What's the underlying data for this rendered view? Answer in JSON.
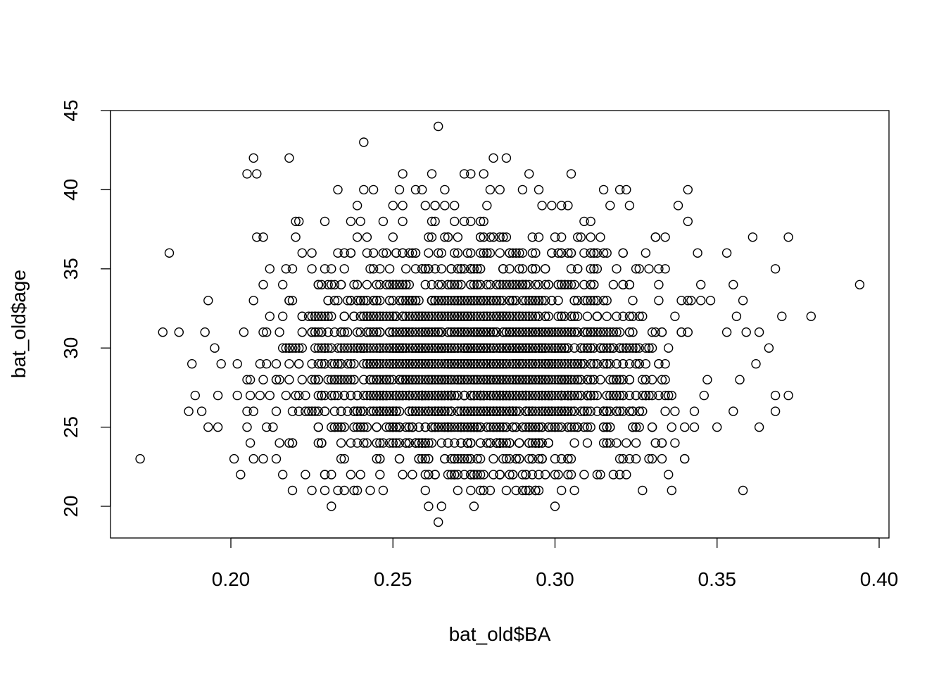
{
  "chart_data": {
    "type": "scatter",
    "title": "",
    "xlabel": "bat_old$BA",
    "ylabel": "bat_old$age",
    "xlim": [
      0.165,
      0.405
    ],
    "ylim": [
      18,
      45
    ],
    "x_ticks": [
      0.2,
      0.25,
      0.3,
      0.35,
      0.4
    ],
    "x_tick_labels": [
      "0.20",
      "0.25",
      "0.30",
      "0.35",
      "0.40"
    ],
    "y_ticks": [
      20,
      25,
      30,
      35,
      40,
      45
    ],
    "y_tick_labels": [
      "20",
      "25",
      "30",
      "35",
      "40",
      "45"
    ],
    "grid": false,
    "legend": "none",
    "marker": "open-circle",
    "color": "#000000",
    "points": [
      {
        "x": 0.172,
        "y": 23
      },
      {
        "x": 0.181,
        "y": 36
      },
      {
        "x": 0.179,
        "y": 31
      },
      {
        "x": 0.184,
        "y": 31
      },
      {
        "x": 0.187,
        "y": 26
      },
      {
        "x": 0.188,
        "y": 29
      },
      {
        "x": 0.189,
        "y": 27
      },
      {
        "x": 0.191,
        "y": 26
      },
      {
        "x": 0.192,
        "y": 31
      },
      {
        "x": 0.193,
        "y": 25
      },
      {
        "x": 0.193,
        "y": 33
      },
      {
        "x": 0.195,
        "y": 30
      },
      {
        "x": 0.196,
        "y": 25
      },
      {
        "x": 0.196,
        "y": 27
      },
      {
        "x": 0.197,
        "y": 29
      },
      {
        "x": 0.201,
        "y": 23
      },
      {
        "x": 0.202,
        "y": 29
      },
      {
        "x": 0.202,
        "y": 27
      },
      {
        "x": 0.203,
        "y": 22
      },
      {
        "x": 0.204,
        "y": 31
      },
      {
        "x": 0.205,
        "y": 41
      },
      {
        "x": 0.205,
        "y": 26
      },
      {
        "x": 0.205,
        "y": 25
      },
      {
        "x": 0.207,
        "y": 42
      },
      {
        "x": 0.208,
        "y": 41
      },
      {
        "x": 0.207,
        "y": 33
      },
      {
        "x": 0.207,
        "y": 23
      },
      {
        "x": 0.208,
        "y": 37
      },
      {
        "x": 0.21,
        "y": 37
      },
      {
        "x": 0.212,
        "y": 35
      },
      {
        "x": 0.218,
        "y": 42
      },
      {
        "x": 0.221,
        "y": 38
      },
      {
        "x": 0.222,
        "y": 36
      },
      {
        "x": 0.225,
        "y": 21
      },
      {
        "x": 0.229,
        "y": 21
      },
      {
        "x": 0.231,
        "y": 20
      },
      {
        "x": 0.233,
        "y": 40
      },
      {
        "x": 0.233,
        "y": 21
      },
      {
        "x": 0.237,
        "y": 38
      },
      {
        "x": 0.239,
        "y": 39
      },
      {
        "x": 0.241,
        "y": 43
      },
      {
        "x": 0.241,
        "y": 40
      },
      {
        "x": 0.244,
        "y": 40
      },
      {
        "x": 0.247,
        "y": 21
      },
      {
        "x": 0.25,
        "y": 39
      },
      {
        "x": 0.252,
        "y": 40
      },
      {
        "x": 0.253,
        "y": 41
      },
      {
        "x": 0.257,
        "y": 40
      },
      {
        "x": 0.259,
        "y": 40
      },
      {
        "x": 0.261,
        "y": 20
      },
      {
        "x": 0.262,
        "y": 41
      },
      {
        "x": 0.264,
        "y": 44
      },
      {
        "x": 0.264,
        "y": 19
      },
      {
        "x": 0.265,
        "y": 20
      },
      {
        "x": 0.266,
        "y": 40
      },
      {
        "x": 0.269,
        "y": 39
      },
      {
        "x": 0.272,
        "y": 41
      },
      {
        "x": 0.274,
        "y": 41
      },
      {
        "x": 0.275,
        "y": 20
      },
      {
        "x": 0.278,
        "y": 41
      },
      {
        "x": 0.281,
        "y": 42
      },
      {
        "x": 0.28,
        "y": 40
      },
      {
        "x": 0.283,
        "y": 40
      },
      {
        "x": 0.285,
        "y": 42
      },
      {
        "x": 0.29,
        "y": 40
      },
      {
        "x": 0.292,
        "y": 41
      },
      {
        "x": 0.295,
        "y": 40
      },
      {
        "x": 0.3,
        "y": 20
      },
      {
        "x": 0.302,
        "y": 39
      },
      {
        "x": 0.305,
        "y": 41
      },
      {
        "x": 0.306,
        "y": 21
      },
      {
        "x": 0.309,
        "y": 22
      },
      {
        "x": 0.311,
        "y": 38
      },
      {
        "x": 0.314,
        "y": 22
      },
      {
        "x": 0.315,
        "y": 40
      },
      {
        "x": 0.317,
        "y": 39
      },
      {
        "x": 0.32,
        "y": 40
      },
      {
        "x": 0.322,
        "y": 40
      },
      {
        "x": 0.323,
        "y": 39
      },
      {
        "x": 0.327,
        "y": 21
      },
      {
        "x": 0.33,
        "y": 23
      },
      {
        "x": 0.331,
        "y": 37
      },
      {
        "x": 0.338,
        "y": 39
      },
      {
        "x": 0.341,
        "y": 40
      },
      {
        "x": 0.341,
        "y": 38
      },
      {
        "x": 0.344,
        "y": 36
      },
      {
        "x": 0.348,
        "y": 33
      },
      {
        "x": 0.35,
        "y": 25
      },
      {
        "x": 0.353,
        "y": 36
      },
      {
        "x": 0.353,
        "y": 31
      },
      {
        "x": 0.355,
        "y": 34
      },
      {
        "x": 0.356,
        "y": 32
      },
      {
        "x": 0.358,
        "y": 33
      },
      {
        "x": 0.358,
        "y": 21
      },
      {
        "x": 0.359,
        "y": 31
      },
      {
        "x": 0.361,
        "y": 37
      },
      {
        "x": 0.362,
        "y": 29
      },
      {
        "x": 0.363,
        "y": 31
      },
      {
        "x": 0.363,
        "y": 25
      },
      {
        "x": 0.366,
        "y": 30
      },
      {
        "x": 0.368,
        "y": 35
      },
      {
        "x": 0.368,
        "y": 27
      },
      {
        "x": 0.368,
        "y": 26
      },
      {
        "x": 0.37,
        "y": 32
      },
      {
        "x": 0.372,
        "y": 37
      },
      {
        "x": 0.372,
        "y": 27
      },
      {
        "x": 0.379,
        "y": 32
      },
      {
        "x": 0.394,
        "y": 34
      },
      {
        "x": 0.357,
        "y": 28
      },
      {
        "x": 0.355,
        "y": 26
      },
      {
        "x": 0.343,
        "y": 25
      },
      {
        "x": 0.347,
        "y": 28
      },
      {
        "x": 0.346,
        "y": 27
      },
      {
        "x": 0.34,
        "y": 25
      },
      {
        "x": 0.333,
        "y": 24
      },
      {
        "x": 0.33,
        "y": 25
      },
      {
        "x": 0.216,
        "y": 22
      },
      {
        "x": 0.223,
        "y": 22
      },
      {
        "x": 0.214,
        "y": 23
      },
      {
        "x": 0.215,
        "y": 24
      },
      {
        "x": 0.21,
        "y": 23
      },
      {
        "x": 0.219,
        "y": 24
      },
      {
        "x": 0.22,
        "y": 27
      },
      {
        "x": 0.218,
        "y": 29
      }
    ]
  }
}
